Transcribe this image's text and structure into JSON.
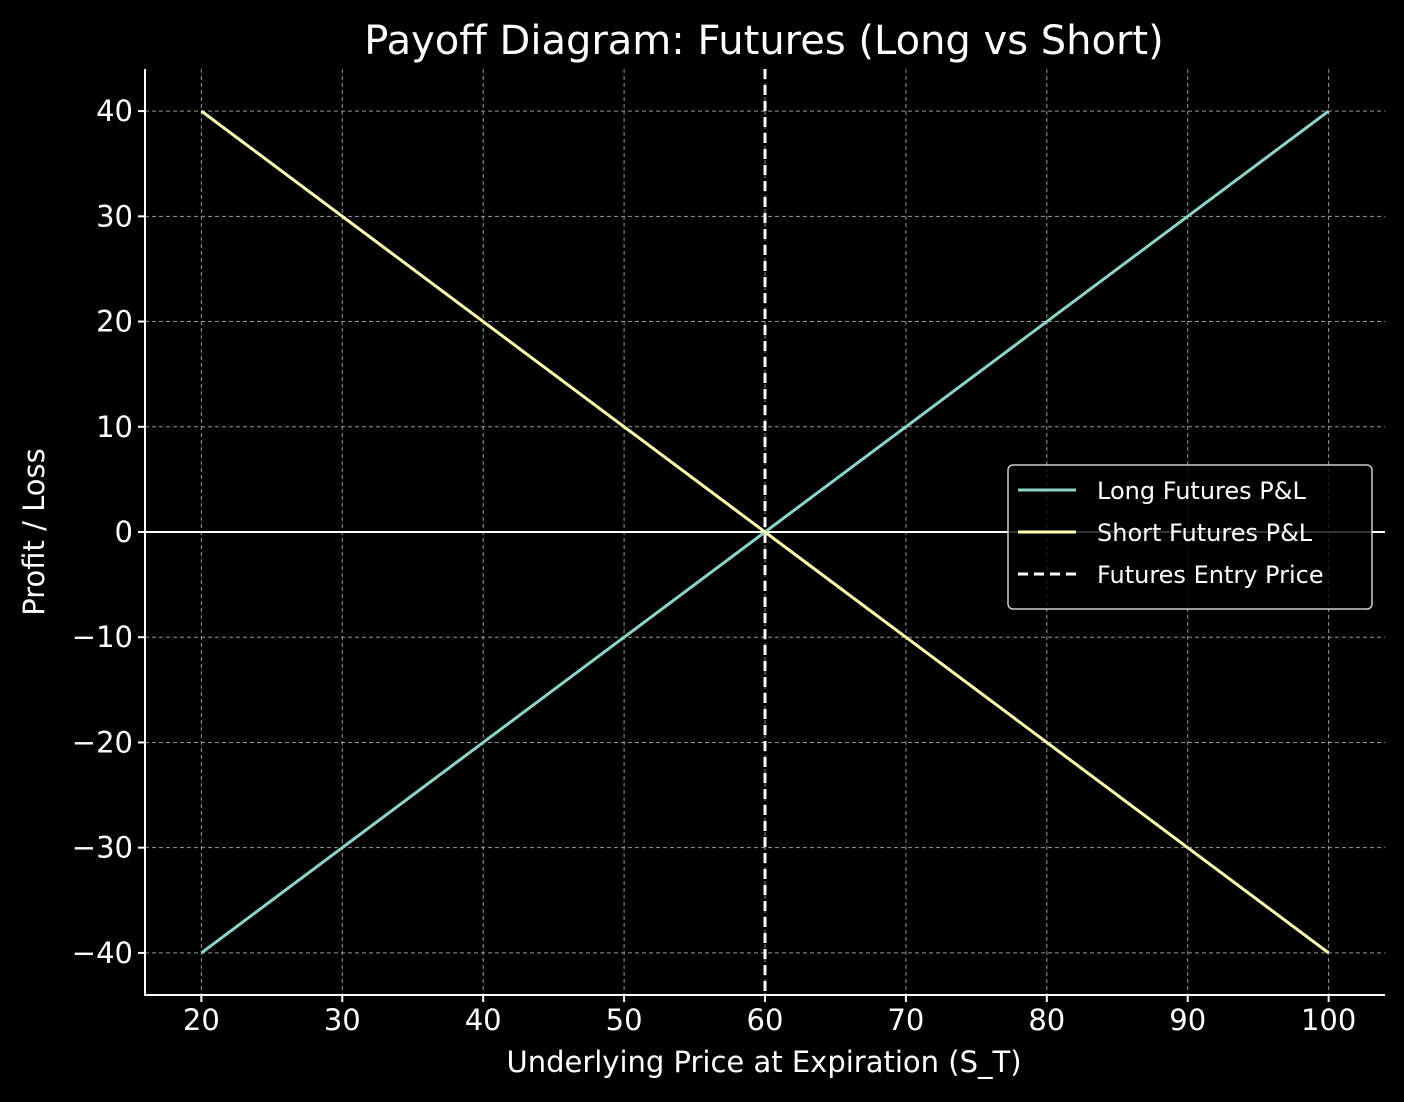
{
  "chart_data": {
    "type": "line",
    "title": "Payoff Diagram: Futures (Long vs Short)",
    "xlabel": "Underlying Price at Expiration (S_T)",
    "ylabel": "Profit / Loss",
    "xlim": [
      16,
      104
    ],
    "ylim": [
      -44,
      44
    ],
    "x_ticks": [
      20,
      30,
      40,
      50,
      60,
      70,
      80,
      90,
      100
    ],
    "y_ticks": [
      40,
      30,
      20,
      10,
      0,
      -10,
      -20,
      -30,
      -40
    ],
    "x_tick_labels": [
      "20",
      "30",
      "40",
      "50",
      "60",
      "70",
      "80",
      "90",
      "100"
    ],
    "y_tick_labels": [
      "40",
      "30",
      "20",
      "10",
      "0",
      "−10",
      "−20",
      "−30",
      "−40"
    ],
    "grid": true,
    "legend_position": "center-right",
    "x": [
      20,
      30,
      40,
      50,
      60,
      70,
      80,
      90,
      100
    ],
    "series": [
      {
        "name": "Long Futures P&L",
        "color": "#8dd3c7",
        "style": "solid",
        "values": [
          -40,
          -30,
          -20,
          -10,
          0,
          10,
          20,
          30,
          40
        ]
      },
      {
        "name": "Short Futures P&L",
        "color": "#ffffb3",
        "style": "solid",
        "values": [
          40,
          30,
          20,
          10,
          0,
          -10,
          -20,
          -30,
          -40
        ]
      }
    ],
    "reference_lines": [
      {
        "name": "Futures Entry Price",
        "orientation": "vertical",
        "value": 60,
        "color": "#ffffff",
        "style": "dashed",
        "in_legend": true
      },
      {
        "orientation": "horizontal",
        "value": 0,
        "color": "#ffffff",
        "style": "solid",
        "in_legend": false
      }
    ]
  }
}
